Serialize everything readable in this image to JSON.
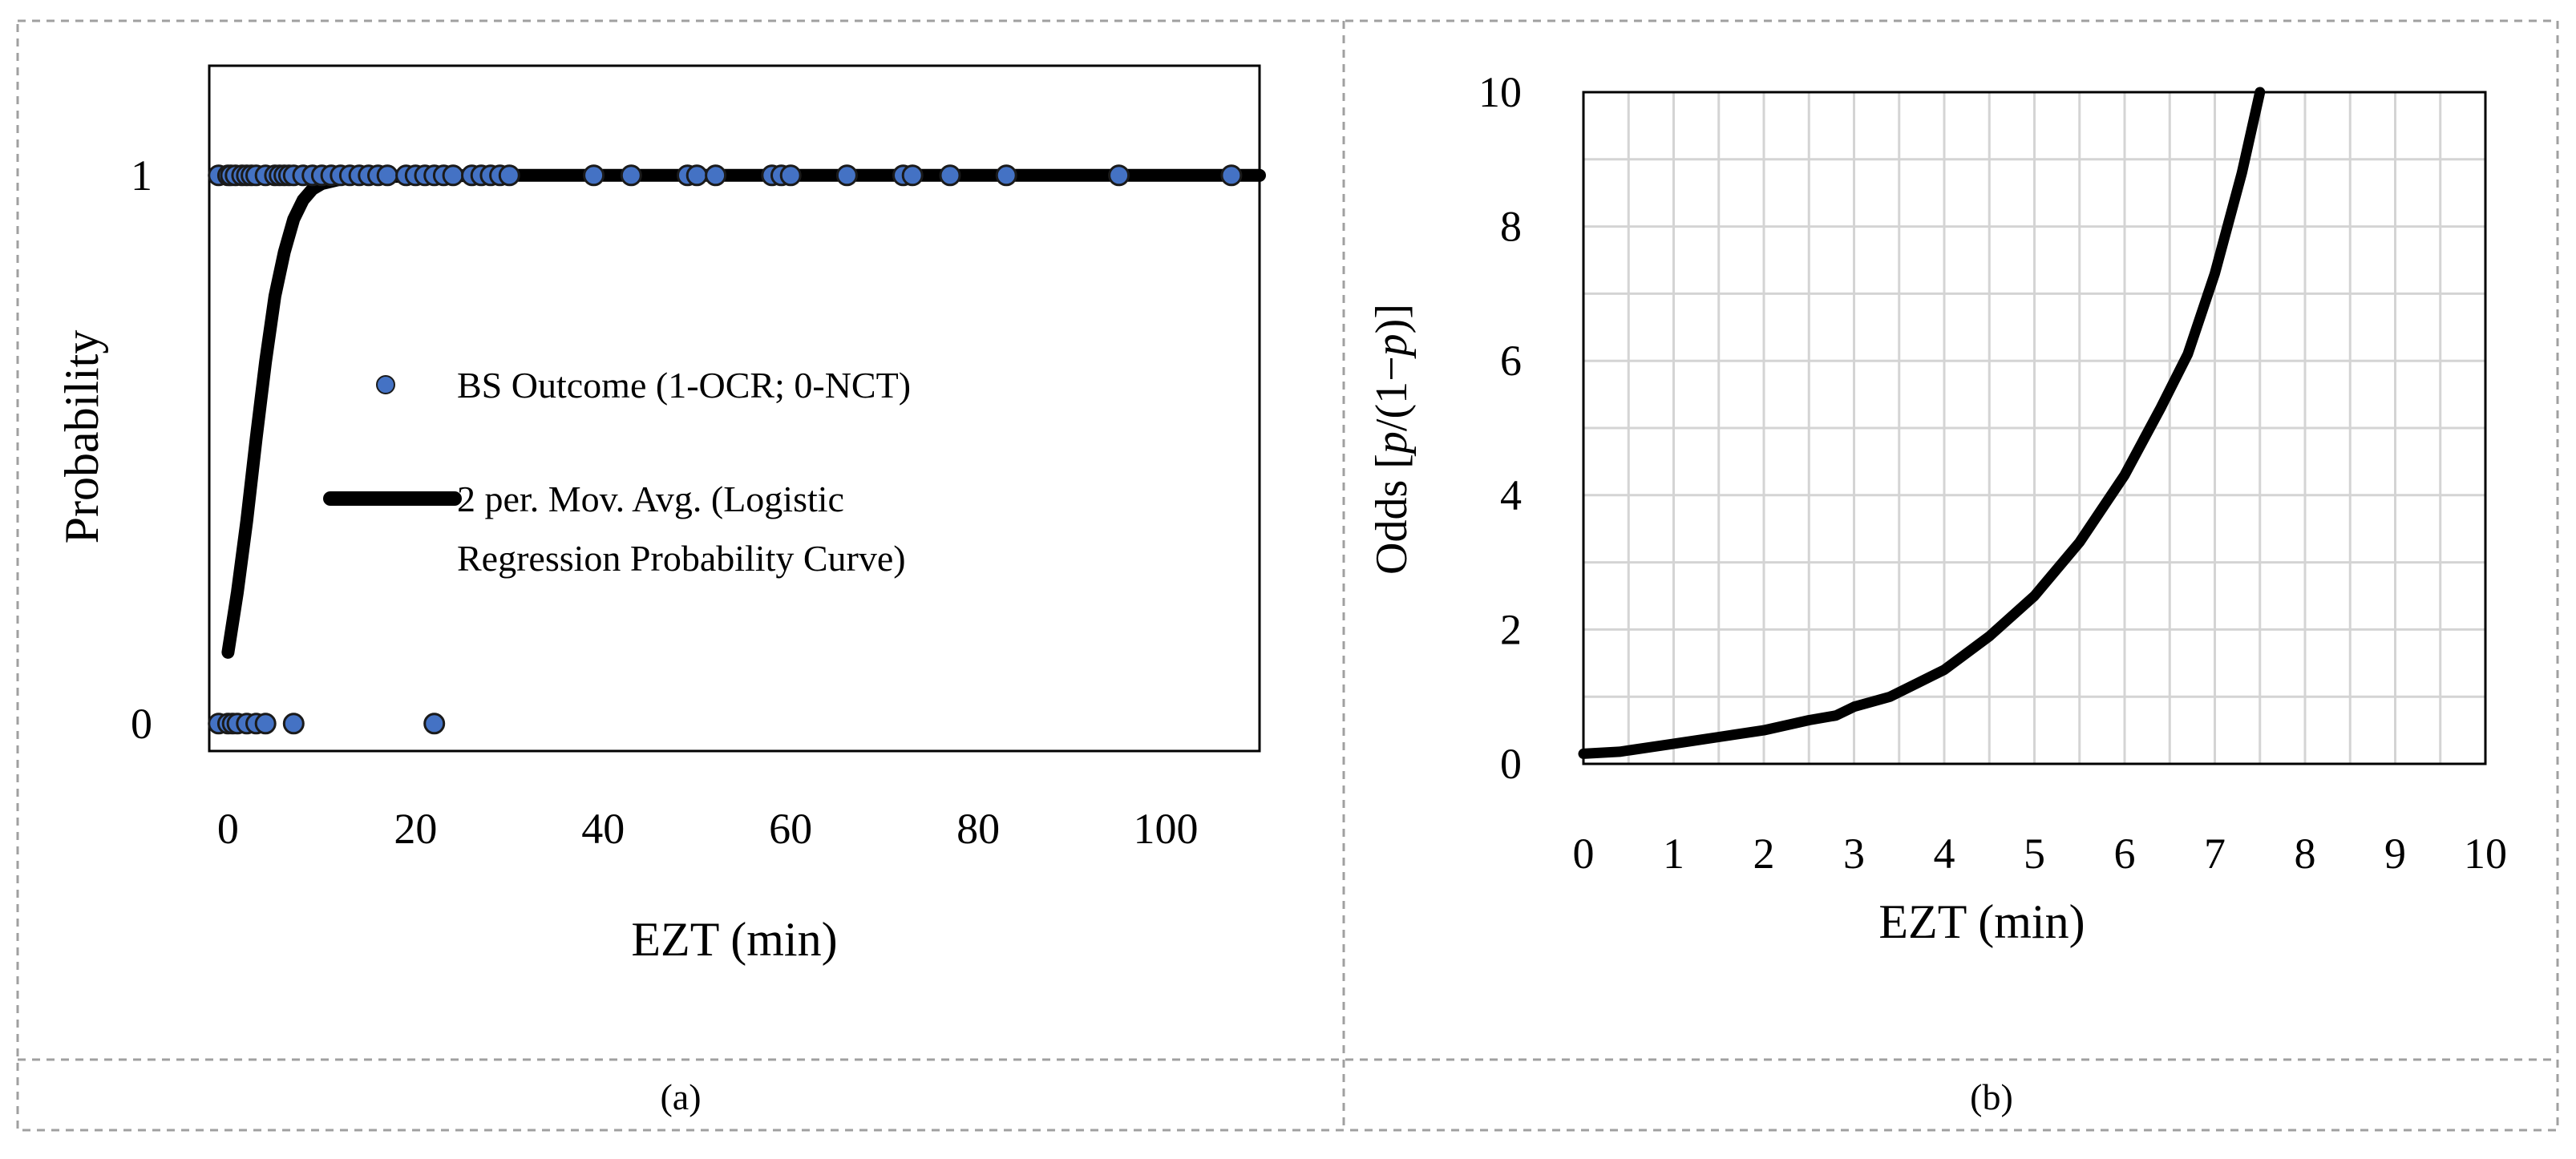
{
  "panels": [
    {
      "caption": "(a)"
    },
    {
      "caption": "(b)"
    }
  ],
  "chart_data": [
    {
      "panel": "(a)",
      "type": "scatter",
      "title": "",
      "xlabel": "EZT (min)",
      "ylabel": "Probability",
      "xlim": [
        -2,
        110
      ],
      "ylim": [
        -0.05,
        1.2
      ],
      "xticks": [
        0,
        20,
        40,
        60,
        80,
        100
      ],
      "yticks": [
        0,
        1
      ],
      "x_tick_labels": [
        "0",
        "20",
        "40",
        "60",
        "80",
        "100"
      ],
      "y_tick_labels": [
        "0",
        "1"
      ],
      "grid": false,
      "legend_position": "center",
      "legend": [
        {
          "label_line1": "BS Outcome (1-OCR; 0-NCT)",
          "label_line2": ""
        },
        {
          "label_line1": "2 per. Mov. Avg. (Logistic",
          "label_line2": "Regression Probability Curve)"
        }
      ],
      "series": [
        {
          "name": "BS Outcome (1-OCR; 0-NCT)",
          "kind": "points",
          "color": "#4472c4",
          "edge_color": "#1a1a1a",
          "x": [
            -1,
            0,
            0.3,
            0.8,
            1.5,
            2,
            2.5,
            3,
            4,
            5,
            5.5,
            6,
            6.5,
            7,
            8,
            9,
            10,
            11,
            12,
            13,
            14,
            15,
            16,
            17,
            19,
            20,
            21,
            22,
            23,
            24,
            26,
            27,
            28,
            29,
            30,
            39,
            43,
            49,
            50,
            52,
            58,
            59,
            60,
            66,
            72,
            73,
            77,
            83,
            95,
            107,
            -1,
            0,
            0.5,
            1,
            2,
            3,
            4,
            7,
            22
          ],
          "y": [
            1,
            1,
            1,
            1,
            1,
            1,
            1,
            1,
            1,
            1,
            1,
            1,
            1,
            1,
            1,
            1,
            1,
            1,
            1,
            1,
            1,
            1,
            1,
            1,
            1,
            1,
            1,
            1,
            1,
            1,
            1,
            1,
            1,
            1,
            1,
            1,
            1,
            1,
            1,
            1,
            1,
            1,
            1,
            1,
            1,
            1,
            1,
            1,
            1,
            1,
            0,
            0,
            0,
            0,
            0,
            0,
            0,
            0,
            0
          ]
        },
        {
          "name": "2 per. Mov. Avg. (Logistic Regression Probability Curve)",
          "kind": "line",
          "color": "#000000",
          "x": [
            0,
            1,
            2,
            3,
            4,
            5,
            6,
            7,
            8,
            9,
            10,
            12,
            15,
            20,
            30,
            50,
            80,
            110
          ],
          "y": [
            0.13,
            0.24,
            0.37,
            0.52,
            0.66,
            0.78,
            0.86,
            0.92,
            0.955,
            0.975,
            0.985,
            0.993,
            0.997,
            0.999,
            1.0,
            1.0,
            1.0,
            1.0
          ]
        }
      ]
    },
    {
      "panel": "(b)",
      "type": "line",
      "title": "",
      "xlabel": "EZT (min)",
      "ylabel_prefix": "Odds [",
      "ylabel_var1": "p",
      "ylabel_mid": "/(1−",
      "ylabel_var2": "p",
      "ylabel_suffix": ")]",
      "xlim": [
        0,
        10
      ],
      "ylim": [
        0,
        10
      ],
      "xticks": [
        0,
        1,
        2,
        3,
        4,
        5,
        6,
        7,
        8,
        9,
        10
      ],
      "yticks": [
        0,
        2,
        4,
        6,
        8,
        10
      ],
      "x_tick_labels": [
        "0",
        "1",
        "2",
        "3",
        "4",
        "5",
        "6",
        "7",
        "8",
        "9",
        "10"
      ],
      "y_tick_labels": [
        "0",
        "2",
        "4",
        "6",
        "8",
        "10"
      ],
      "grid": true,
      "series": [
        {
          "name": "Odds",
          "color": "#000000",
          "x": [
            0,
            0.4,
            1,
            1.5,
            2,
            2.5,
            2.8,
            3,
            3.4,
            3.7,
            4,
            4.5,
            5,
            5.5,
            6,
            6.4,
            6.7,
            7,
            7.3,
            7.5
          ],
          "y": [
            0.15,
            0.18,
            0.3,
            0.4,
            0.5,
            0.65,
            0.72,
            0.85,
            1.0,
            1.2,
            1.4,
            1.9,
            2.5,
            3.3,
            4.3,
            5.3,
            6.1,
            7.3,
            8.8,
            10.0
          ]
        }
      ]
    }
  ]
}
